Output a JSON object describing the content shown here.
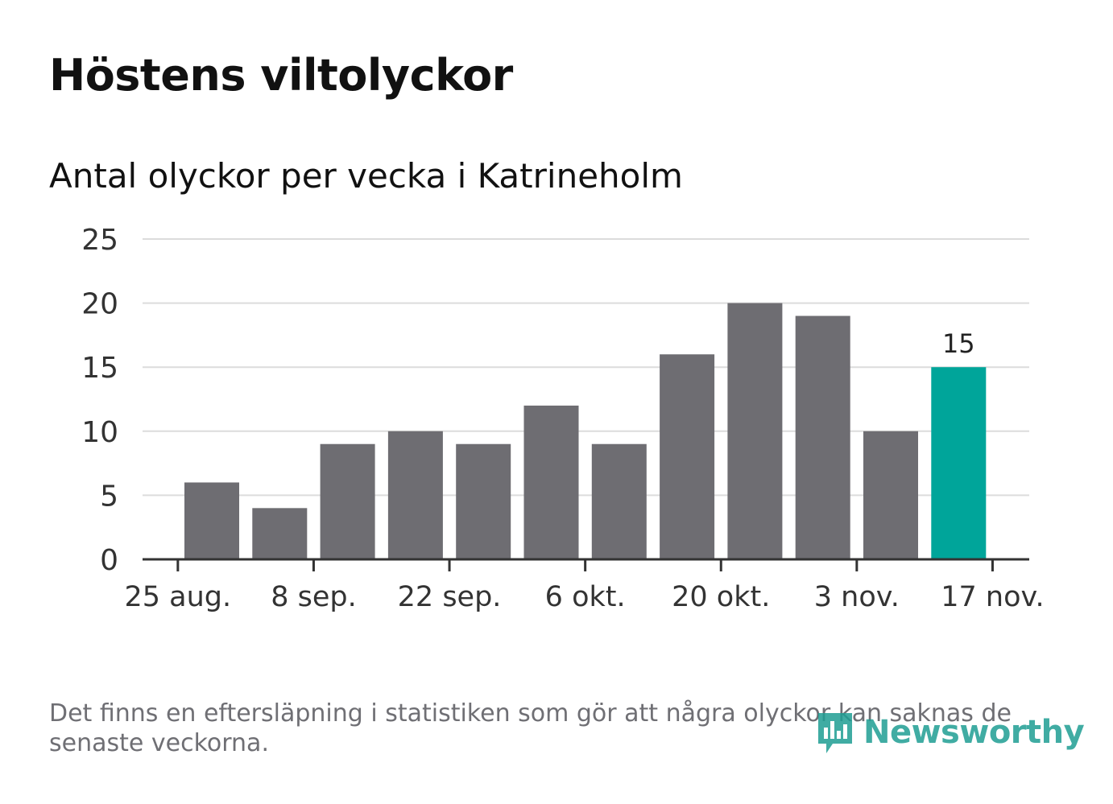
{
  "header": {
    "title": "Höstens viltolyckor",
    "subtitle": "Antal olyckor per vecka i Katrineholm"
  },
  "footer": {
    "note": "Det finns en eftersläpning i statistiken som gör att några olyckor kan saknas de senaste veckorna.",
    "logo_text": "Newsworthy",
    "logo_icon": "bar-chart-speech-bubble-icon"
  },
  "colors": {
    "bar": "#6e6d72",
    "highlight": "#00a59a",
    "grid": "#dcdcdc",
    "axis": "#333333",
    "logo": "#1f9e94"
  },
  "chart_data": {
    "type": "bar",
    "title": "Höstens viltolyckor",
    "subtitle": "Antal olyckor per vecka i Katrineholm",
    "xlabel": "",
    "ylabel": "",
    "ylim": [
      0,
      25
    ],
    "yticks": [
      0,
      5,
      10,
      15,
      20,
      25
    ],
    "grid": true,
    "values": [
      6,
      4,
      9,
      10,
      9,
      12,
      9,
      16,
      20,
      19,
      10,
      15
    ],
    "highlight_index": 11,
    "highlight_label": "15",
    "x_tick_labels": [
      "25 aug.",
      "8 sep.",
      "22 sep.",
      "6 okt.",
      "20 okt.",
      "3 nov.",
      "17 nov."
    ],
    "x_tick_bar_positions": [
      -0.5,
      1.5,
      3.5,
      5.5,
      7.5,
      9.5,
      11.5
    ]
  }
}
